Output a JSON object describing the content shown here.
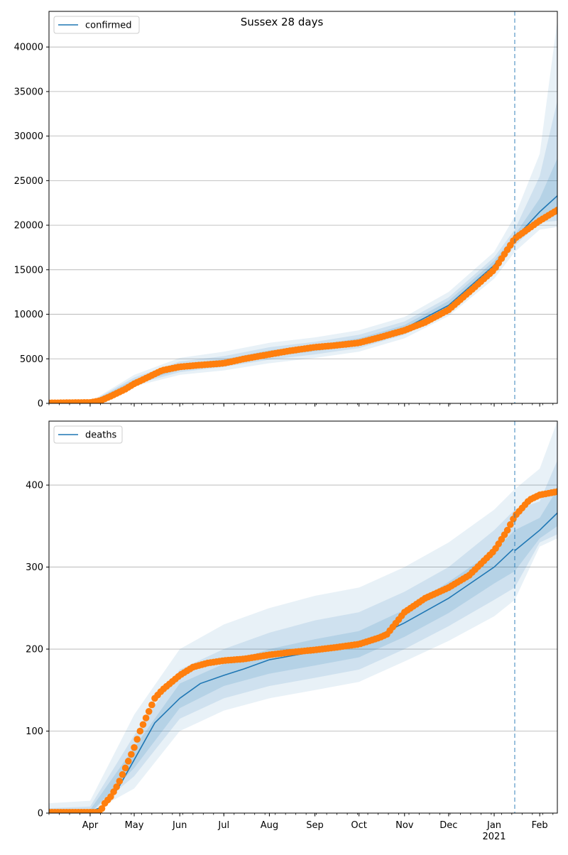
{
  "figure": {
    "title": "Sussex 28 days"
  },
  "colors": {
    "model": "#1f77b4",
    "observed": "#ff7f0e",
    "band": "#1f77b4",
    "grid": "#b0b0b0",
    "forecast_line": "#1f77b4"
  },
  "x_axis": {
    "month_labels": [
      "Apr",
      "May",
      "Jun",
      "Jul",
      "Aug",
      "Sep",
      "Oct",
      "Nov",
      "Dec",
      "Jan",
      "Feb"
    ],
    "month_dates": [
      "2020-04-01",
      "2020-05-01",
      "2020-06-01",
      "2020-07-01",
      "2020-08-01",
      "2020-09-01",
      "2020-10-01",
      "2020-11-01",
      "2020-12-01",
      "2021-01-01",
      "2021-02-01"
    ],
    "year_label": "2021",
    "x_start": "2020-03-04",
    "x_end": "2021-02-13",
    "forecast_start": "2021-01-15"
  },
  "chart_data": [
    {
      "type": "line",
      "name": "confirmed",
      "legend": "confirmed",
      "legend_position": "top-left",
      "grid": "y",
      "ylim": [
        0,
        44000
      ],
      "yticks": [
        0,
        5000,
        10000,
        15000,
        20000,
        25000,
        30000,
        35000,
        40000
      ],
      "model_series": {
        "x": [
          "2020-03-04",
          "2020-04-01",
          "2020-04-10",
          "2020-04-20",
          "2020-05-01",
          "2020-05-15",
          "2020-06-01",
          "2020-07-01",
          "2020-08-01",
          "2020-09-01",
          "2020-10-01",
          "2020-11-01",
          "2020-12-01",
          "2021-01-01",
          "2021-01-15",
          "2021-02-01",
          "2021-02-13"
        ],
        "y": [
          0,
          100,
          350,
          1200,
          2400,
          3400,
          4000,
          4600,
          5600,
          6200,
          6900,
          8400,
          11000,
          15500,
          18500,
          21500,
          23300
        ]
      },
      "observed_series": {
        "x": [
          "2020-03-04",
          "2020-04-01",
          "2020-04-08",
          "2020-04-15",
          "2020-04-25",
          "2020-05-01",
          "2020-05-10",
          "2020-05-20",
          "2020-06-01",
          "2020-06-15",
          "2020-07-01",
          "2020-07-15",
          "2020-08-01",
          "2020-08-15",
          "2020-09-01",
          "2020-09-15",
          "2020-10-01",
          "2020-10-15",
          "2020-11-01",
          "2020-11-15",
          "2020-12-01",
          "2020-12-15",
          "2021-01-01",
          "2021-01-15",
          "2021-02-01",
          "2021-02-13"
        ],
        "y": [
          50,
          100,
          300,
          800,
          1600,
          2200,
          2900,
          3700,
          4100,
          4300,
          4500,
          5000,
          5500,
          5900,
          6300,
          6500,
          6800,
          7400,
          8200,
          9100,
          10500,
          12500,
          15000,
          18500,
          20500,
          21700
        ]
      },
      "bands": [
        {
          "label": "outer",
          "x": [
            "2020-03-04",
            "2020-04-01",
            "2020-05-01",
            "2020-06-01",
            "2020-07-01",
            "2020-08-01",
            "2020-09-01",
            "2020-10-01",
            "2020-11-01",
            "2020-12-01",
            "2021-01-01",
            "2021-01-15",
            "2021-02-01",
            "2021-02-13"
          ],
          "lower": [
            0,
            0,
            1900,
            3200,
            3700,
            4500,
            5100,
            5800,
            7300,
            9800,
            14000,
            17000,
            19500,
            19800
          ],
          "upper": [
            0,
            200,
            3200,
            5100,
            5800,
            6800,
            7400,
            8200,
            9700,
            12500,
            17000,
            21000,
            28000,
            43000
          ]
        },
        {
          "label": "middle",
          "x": [
            "2020-03-04",
            "2020-04-01",
            "2020-05-01",
            "2020-06-01",
            "2020-07-01",
            "2020-08-01",
            "2020-09-01",
            "2020-10-01",
            "2020-11-01",
            "2020-12-01",
            "2021-01-01",
            "2021-01-15",
            "2021-02-01",
            "2021-02-13"
          ],
          "lower": [
            0,
            20,
            2100,
            3500,
            4100,
            4900,
            5500,
            6200,
            7700,
            10200,
            14600,
            17700,
            20300,
            20500
          ],
          "upper": [
            0,
            150,
            2900,
            4700,
            5300,
            6300,
            6900,
            7700,
            9200,
            11900,
            16400,
            19500,
            25500,
            34000
          ]
        },
        {
          "label": "inner",
          "x": [
            "2020-03-04",
            "2020-04-01",
            "2020-05-01",
            "2020-06-01",
            "2020-07-01",
            "2020-08-01",
            "2020-09-01",
            "2020-10-01",
            "2020-11-01",
            "2020-12-01",
            "2021-01-01",
            "2021-01-15",
            "2021-02-01",
            "2021-02-13"
          ],
          "lower": [
            0,
            50,
            2250,
            3750,
            4350,
            5250,
            5850,
            6550,
            8050,
            10600,
            15000,
            18100,
            20800,
            21800
          ],
          "upper": [
            0,
            120,
            2650,
            4350,
            4950,
            5950,
            6550,
            7300,
            8800,
            11500,
            16000,
            18900,
            23000,
            27500
          ]
        }
      ]
    },
    {
      "type": "line",
      "name": "deaths",
      "legend": "deaths",
      "legend_position": "top-left",
      "grid": "y",
      "ylim": [
        0,
        478
      ],
      "yticks": [
        0,
        100,
        200,
        300,
        400
      ],
      "model_series": {
        "x": [
          "2020-03-04",
          "2020-04-01",
          "2020-04-10",
          "2020-04-20",
          "2020-05-01",
          "2020-05-15",
          "2020-06-01",
          "2020-06-15",
          "2020-07-01",
          "2020-07-15",
          "2020-08-01",
          "2020-09-01",
          "2020-10-01",
          "2020-11-01",
          "2020-12-01",
          "2021-01-01",
          "2021-01-14"
        ],
        "y": [
          0,
          2,
          8,
          30,
          65,
          110,
          140,
          158,
          168,
          176,
          187,
          197,
          205,
          232,
          262,
          300,
          322
        ]
      },
      "model_forecast": {
        "x": [
          "2021-01-15",
          "2021-02-01",
          "2021-02-13"
        ],
        "y": [
          320,
          345,
          366
        ]
      },
      "observed_series": {
        "x": [
          "2020-03-04",
          "2020-04-01",
          "2020-04-08",
          "2020-04-10",
          "2020-04-15",
          "2020-04-20",
          "2020-04-25",
          "2020-05-01",
          "2020-05-05",
          "2020-05-10",
          "2020-05-15",
          "2020-05-20",
          "2020-06-01",
          "2020-06-10",
          "2020-06-20",
          "2020-07-01",
          "2020-07-15",
          "2020-08-01",
          "2020-08-15",
          "2020-09-01",
          "2020-09-15",
          "2020-10-01",
          "2020-10-15",
          "2020-10-20",
          "2020-11-01",
          "2020-11-15",
          "2020-12-01",
          "2020-12-15",
          "2021-01-01",
          "2021-01-10",
          "2021-01-15",
          "2021-01-25",
          "2021-02-01",
          "2021-02-13"
        ],
        "y": [
          1,
          1,
          1,
          10,
          20,
          35,
          55,
          80,
          100,
          120,
          140,
          150,
          168,
          178,
          183,
          186,
          188,
          193,
          196,
          199,
          202,
          206,
          214,
          218,
          245,
          262,
          275,
          290,
          320,
          345,
          362,
          382,
          388,
          392
        ]
      },
      "bands": [
        {
          "label": "outer",
          "x": [
            "2020-03-04",
            "2020-04-01",
            "2020-05-01",
            "2020-06-01",
            "2020-07-01",
            "2020-08-01",
            "2020-09-01",
            "2020-10-01",
            "2020-11-01",
            "2020-12-01",
            "2021-01-01",
            "2021-01-15",
            "2021-02-01",
            "2021-02-13"
          ],
          "lower": [
            0,
            0,
            30,
            100,
            125,
            140,
            150,
            160,
            185,
            210,
            240,
            260,
            325,
            335
          ],
          "upper": [
            12,
            15,
            120,
            200,
            230,
            250,
            265,
            275,
            300,
            330,
            370,
            395,
            420,
            478
          ]
        },
        {
          "label": "middle",
          "x": [
            "2020-03-04",
            "2020-04-01",
            "2020-05-01",
            "2020-06-01",
            "2020-07-01",
            "2020-08-01",
            "2020-09-01",
            "2020-10-01",
            "2020-11-01",
            "2020-12-01",
            "2021-01-01",
            "2021-01-15",
            "2021-02-01",
            "2021-02-13"
          ],
          "lower": [
            0,
            0,
            45,
            115,
            140,
            155,
            165,
            175,
            200,
            228,
            260,
            275,
            330,
            340
          ],
          "upper": [
            6,
            8,
            95,
            175,
            200,
            220,
            235,
            245,
            270,
            300,
            345,
            370,
            380,
            430
          ]
        },
        {
          "label": "inner",
          "x": [
            "2020-03-04",
            "2020-04-01",
            "2020-05-01",
            "2020-06-01",
            "2020-07-01",
            "2020-08-01",
            "2020-09-01",
            "2020-10-01",
            "2020-11-01",
            "2020-12-01",
            "2021-01-01",
            "2021-01-15",
            "2021-02-01",
            "2021-02-13"
          ],
          "lower": [
            0,
            0,
            55,
            128,
            155,
            170,
            180,
            190,
            215,
            244,
            280,
            295,
            335,
            350
          ],
          "upper": [
            3,
            4,
            80,
            158,
            182,
            200,
            212,
            222,
            248,
            282,
            320,
            345,
            360,
            395
          ]
        }
      ]
    }
  ]
}
